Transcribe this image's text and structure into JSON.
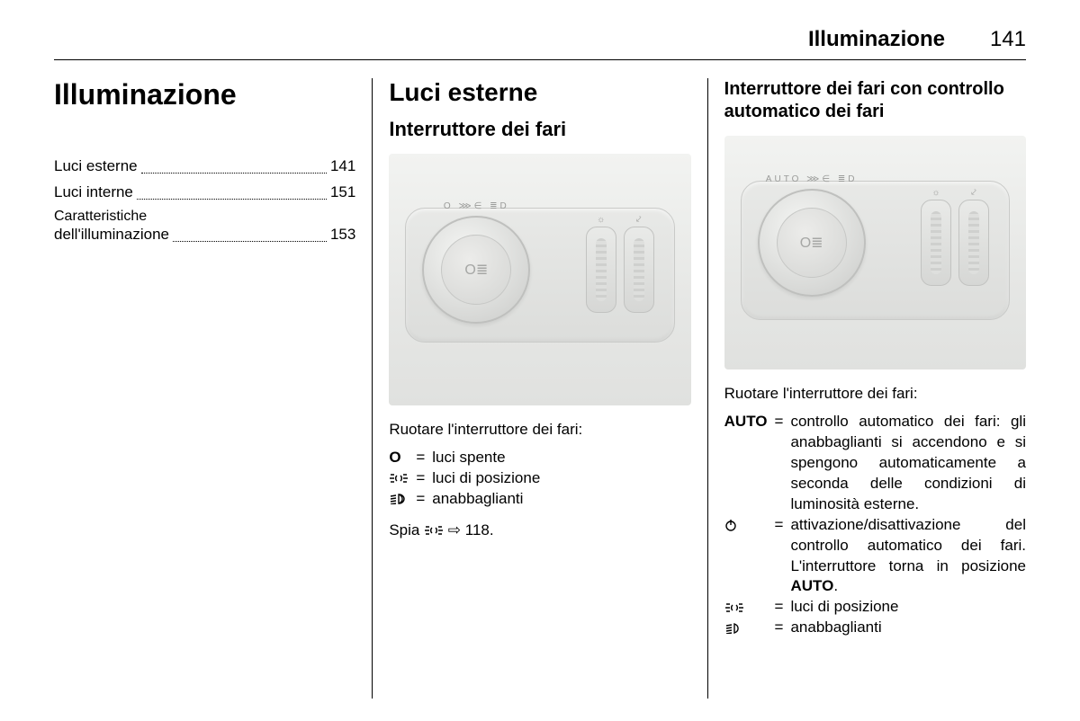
{
  "header": {
    "title": "Illuminazione",
    "page": "141"
  },
  "col1": {
    "chapter": "Illuminazione",
    "toc": [
      {
        "label": "Luci esterne",
        "page": "141"
      },
      {
        "label": "Luci interne",
        "page": "151"
      },
      {
        "label": "Caratteristiche dell'illuminazione",
        "page": "153",
        "multiline": true,
        "line1": "Caratteristiche",
        "line2": "dell'illuminazione"
      }
    ]
  },
  "col2": {
    "section": "Luci esterne",
    "subsection": "Interruttore dei fari",
    "dial_marks": "O  ⋙∈  ≣D",
    "dial_center": "O≣",
    "lead": "Ruotare l'interruttore dei fari:",
    "defs": [
      {
        "sym": "O",
        "txt": "luci spente"
      },
      {
        "sym": "park",
        "txt": "luci di posizione"
      },
      {
        "sym": "low",
        "txt": "anabbaglianti"
      }
    ],
    "footer_pre": "Spia ",
    "footer_post": " ⇨ 118."
  },
  "col3": {
    "subsection": "Interruttore dei fari con controllo automatico dei fari",
    "dial_marks": "AUTO ⋙∈ ≣D",
    "dial_center": "O≣",
    "lead": "Ruotare l'interruttore dei fari:",
    "defs": [
      {
        "sym": "AUTO",
        "txt": "controllo automatico dei fari: gli anabbaglianti si accendono e si spengono automaticamente a seconda delle condizioni di luminosità esterne."
      },
      {
        "sym": "power",
        "txt": "attivazione/disattivazione del controllo automatico dei fari. L'interruttore torna in posizione AUTO.",
        "bold_in_txt": "AUTO"
      },
      {
        "sym": "park",
        "txt": "luci di posizione"
      },
      {
        "sym": "low",
        "txt": "anabbaglianti"
      }
    ]
  },
  "icons": {
    "park": "⋙∈",
    "low": "≣D",
    "power": "⏻"
  },
  "colors": {
    "fig_bg_top": "#f2f3f1",
    "fig_bg_bot": "#e0e1df",
    "panel_border": "#c9cac8",
    "text": "#000000"
  }
}
